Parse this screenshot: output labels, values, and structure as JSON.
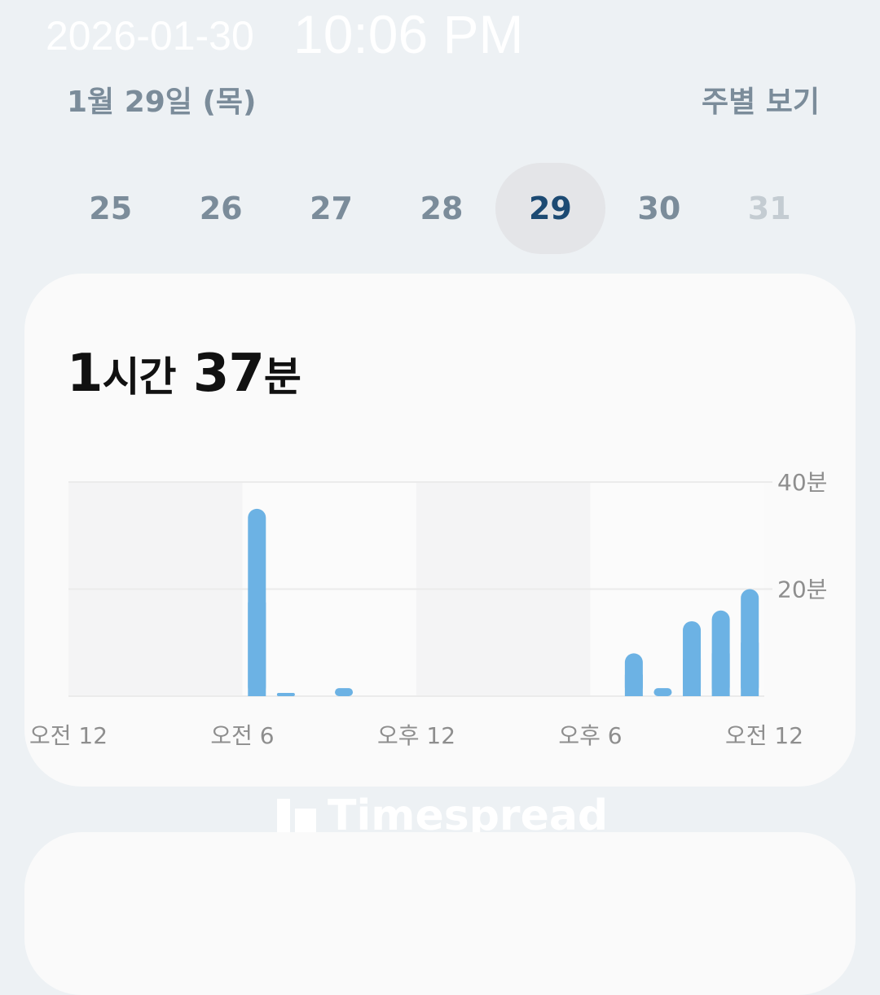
{
  "header": {
    "date_label": "1월 29일 (목)",
    "weekly_view_label": "주별 보기"
  },
  "days": [
    {
      "label": "25",
      "state": "past"
    },
    {
      "label": "26",
      "state": "past"
    },
    {
      "label": "27",
      "state": "past"
    },
    {
      "label": "28",
      "state": "past"
    },
    {
      "label": "29",
      "state": "selected"
    },
    {
      "label": "30",
      "state": "past"
    },
    {
      "label": "31",
      "state": "future"
    }
  ],
  "summary": {
    "hours": "1",
    "hours_unit": "시간",
    "minutes": "37",
    "minutes_unit": "분"
  },
  "chart_data": {
    "type": "bar",
    "x": [
      0,
      1,
      2,
      3,
      4,
      5,
      6,
      7,
      8,
      9,
      10,
      11,
      12,
      13,
      14,
      15,
      16,
      17,
      18,
      19,
      20,
      21,
      22,
      23
    ],
    "values": [
      0,
      0,
      0,
      0,
      0,
      0,
      35,
      0.5,
      0,
      1.5,
      0,
      0,
      0,
      0,
      0,
      0,
      0,
      0,
      0,
      8,
      1.5,
      14,
      16,
      20
    ],
    "xlabel": "",
    "ylabel": "",
    "ylim": [
      0,
      40
    ],
    "y_ticks": [
      {
        "value": 20,
        "label": "20분"
      },
      {
        "value": 40,
        "label": "40분"
      }
    ],
    "x_ticks": [
      {
        "value": 0,
        "label": "오전 12"
      },
      {
        "value": 6,
        "label": "오전 6"
      },
      {
        "value": 12,
        "label": "오후 12"
      },
      {
        "value": 18,
        "label": "오후 6"
      },
      {
        "value": 24,
        "label": "오전 12"
      }
    ],
    "bar_color": "#6cb2e4",
    "grid": true
  },
  "brand": {
    "name": "Timespread"
  },
  "overlay": {
    "date": "2026-01-30",
    "time": "10:06 PM"
  }
}
